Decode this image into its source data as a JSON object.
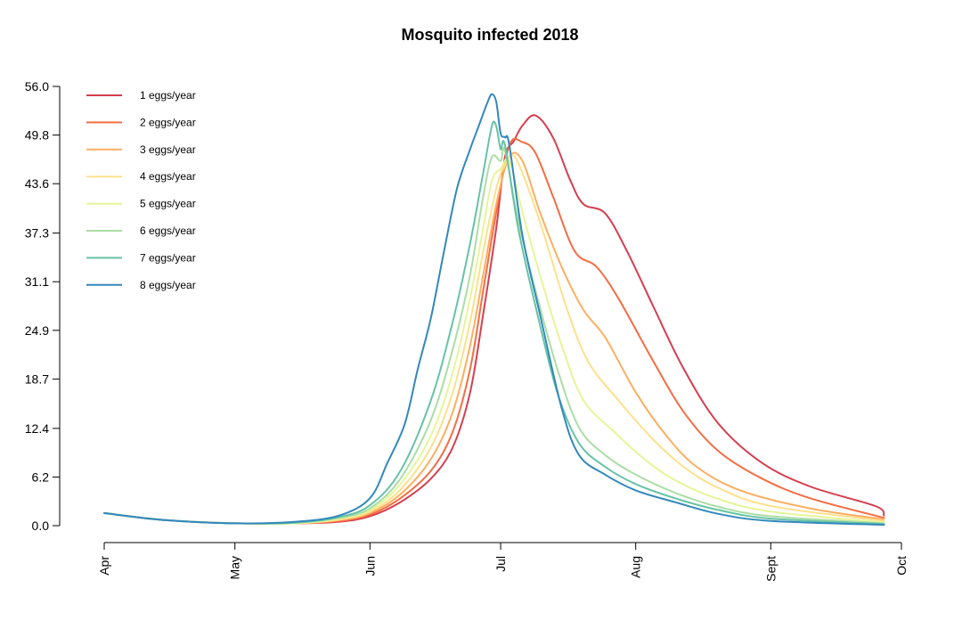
{
  "chart_data": {
    "type": "line",
    "title": "Mosquito infected 2018",
    "xlabel": "",
    "ylabel": "",
    "x_ticks": [
      "Apr",
      "May",
      "Jun",
      "Jul",
      "Aug",
      "Sept",
      "Oct"
    ],
    "x_tick_dates": [
      "2018-04-01",
      "2018-05-01",
      "2018-06-01",
      "2018-07-01",
      "2018-08-01",
      "2018-09-01",
      "2018-10-01"
    ],
    "xlim": [
      "2018-04-01",
      "2018-10-01"
    ],
    "y_ticks": [
      "0.0",
      "6.2",
      "12.4",
      "18.7",
      "24.9",
      "31.1",
      "37.3",
      "43.6",
      "49.8",
      "56.0"
    ],
    "ylim": [
      0,
      56
    ],
    "grid": false,
    "legend_position": "top-left",
    "series": [
      {
        "name": "1 eggs/year",
        "color": "#d53e4f",
        "points": [
          [
            "2018-04-01",
            1.6
          ],
          [
            "2018-04-15",
            0.7
          ],
          [
            "2018-05-01",
            0.3
          ],
          [
            "2018-05-15",
            0.3
          ],
          [
            "2018-05-25",
            0.5
          ],
          [
            "2018-06-01",
            1.2
          ],
          [
            "2018-06-08",
            3.0
          ],
          [
            "2018-06-15",
            6.0
          ],
          [
            "2018-06-20",
            10.0
          ],
          [
            "2018-06-24",
            17.0
          ],
          [
            "2018-06-27",
            27.0
          ],
          [
            "2018-06-30",
            38.0
          ],
          [
            "2018-07-02",
            47.0
          ],
          [
            "2018-07-04",
            49.0
          ],
          [
            "2018-07-06",
            51.0
          ],
          [
            "2018-07-09",
            52.3
          ],
          [
            "2018-07-13",
            49.5
          ],
          [
            "2018-07-17",
            44.0
          ],
          [
            "2018-07-20",
            41.0
          ],
          [
            "2018-07-25",
            39.8
          ],
          [
            "2018-07-30",
            35.0
          ],
          [
            "2018-08-05",
            28.0
          ],
          [
            "2018-08-12",
            20.0
          ],
          [
            "2018-08-20",
            13.0
          ],
          [
            "2018-08-30",
            8.0
          ],
          [
            "2018-09-10",
            5.0
          ],
          [
            "2018-09-25",
            2.5
          ],
          [
            "2018-09-27",
            1.3
          ]
        ]
      },
      {
        "name": "2 eggs/year",
        "color": "#f46d43",
        "points": [
          [
            "2018-04-01",
            1.6
          ],
          [
            "2018-04-15",
            0.7
          ],
          [
            "2018-05-01",
            0.3
          ],
          [
            "2018-05-15",
            0.3
          ],
          [
            "2018-05-25",
            0.6
          ],
          [
            "2018-06-01",
            1.4
          ],
          [
            "2018-06-08",
            3.5
          ],
          [
            "2018-06-15",
            7.0
          ],
          [
            "2018-06-20",
            12.0
          ],
          [
            "2018-06-24",
            20.0
          ],
          [
            "2018-06-27",
            30.0
          ],
          [
            "2018-06-30",
            40.0
          ],
          [
            "2018-07-03",
            48.5
          ],
          [
            "2018-07-06",
            48.9
          ],
          [
            "2018-07-09",
            47.5
          ],
          [
            "2018-07-13",
            42.0
          ],
          [
            "2018-07-18",
            35.0
          ],
          [
            "2018-07-23",
            33.0
          ],
          [
            "2018-07-28",
            29.0
          ],
          [
            "2018-08-05",
            21.0
          ],
          [
            "2018-08-12",
            14.5
          ],
          [
            "2018-08-20",
            9.5
          ],
          [
            "2018-08-30",
            6.0
          ],
          [
            "2018-09-10",
            3.5
          ],
          [
            "2018-09-27",
            1.0
          ]
        ]
      },
      {
        "name": "3 eggs/year",
        "color": "#fdae61",
        "points": [
          [
            "2018-04-01",
            1.6
          ],
          [
            "2018-04-15",
            0.7
          ],
          [
            "2018-05-01",
            0.3
          ],
          [
            "2018-05-15",
            0.3
          ],
          [
            "2018-05-25",
            0.7
          ],
          [
            "2018-06-01",
            1.6
          ],
          [
            "2018-06-08",
            4.0
          ],
          [
            "2018-06-15",
            8.5
          ],
          [
            "2018-06-20",
            14.5
          ],
          [
            "2018-06-24",
            23.0
          ],
          [
            "2018-06-27",
            32.0
          ],
          [
            "2018-06-30",
            41.0
          ],
          [
            "2018-07-03",
            47.0
          ],
          [
            "2018-07-06",
            46.5
          ],
          [
            "2018-07-10",
            40.0
          ],
          [
            "2018-07-15",
            33.0
          ],
          [
            "2018-07-20",
            27.5
          ],
          [
            "2018-07-25",
            24.0
          ],
          [
            "2018-08-01",
            17.0
          ],
          [
            "2018-08-08",
            11.5
          ],
          [
            "2018-08-15",
            7.5
          ],
          [
            "2018-08-25",
            4.5
          ],
          [
            "2018-09-10",
            2.2
          ],
          [
            "2018-09-27",
            0.8
          ]
        ]
      },
      {
        "name": "4 eggs/year",
        "color": "#fee08b",
        "points": [
          [
            "2018-04-01",
            1.6
          ],
          [
            "2018-04-15",
            0.7
          ],
          [
            "2018-05-01",
            0.3
          ],
          [
            "2018-05-15",
            0.3
          ],
          [
            "2018-05-25",
            0.8
          ],
          [
            "2018-06-01",
            1.8
          ],
          [
            "2018-06-08",
            4.6
          ],
          [
            "2018-06-15",
            10.0
          ],
          [
            "2018-06-20",
            17.0
          ],
          [
            "2018-06-24",
            26.0
          ],
          [
            "2018-06-27",
            35.0
          ],
          [
            "2018-06-30",
            43.0
          ],
          [
            "2018-07-02",
            46.0
          ],
          [
            "2018-07-04",
            47.2
          ],
          [
            "2018-07-07",
            43.5
          ],
          [
            "2018-07-11",
            37.0
          ],
          [
            "2018-07-16",
            28.0
          ],
          [
            "2018-07-21",
            21.0
          ],
          [
            "2018-07-28",
            16.0
          ],
          [
            "2018-08-05",
            11.0
          ],
          [
            "2018-08-12",
            7.5
          ],
          [
            "2018-08-20",
            4.8
          ],
          [
            "2018-09-01",
            2.5
          ],
          [
            "2018-09-27",
            0.6
          ]
        ]
      },
      {
        "name": "5 eggs/year",
        "color": "#e6f598",
        "points": [
          [
            "2018-04-01",
            1.6
          ],
          [
            "2018-04-15",
            0.7
          ],
          [
            "2018-05-01",
            0.3
          ],
          [
            "2018-05-15",
            0.3
          ],
          [
            "2018-05-25",
            0.9
          ],
          [
            "2018-06-01",
            2.0
          ],
          [
            "2018-06-08",
            5.3
          ],
          [
            "2018-06-15",
            11.5
          ],
          [
            "2018-06-20",
            19.5
          ],
          [
            "2018-06-24",
            29.0
          ],
          [
            "2018-06-27",
            38.0
          ],
          [
            "2018-06-29",
            44.0
          ],
          [
            "2018-07-01",
            45.5
          ],
          [
            "2018-07-03",
            46.5
          ],
          [
            "2018-07-06",
            40.0
          ],
          [
            "2018-07-10",
            32.0
          ],
          [
            "2018-07-15",
            23.0
          ],
          [
            "2018-07-20",
            16.0
          ],
          [
            "2018-07-27",
            12.0
          ],
          [
            "2018-08-03",
            8.5
          ],
          [
            "2018-08-10",
            5.8
          ],
          [
            "2018-08-20",
            3.4
          ],
          [
            "2018-09-01",
            1.8
          ],
          [
            "2018-09-27",
            0.4
          ]
        ]
      },
      {
        "name": "6 eggs/year",
        "color": "#abdda4",
        "points": [
          [
            "2018-04-01",
            1.6
          ],
          [
            "2018-04-15",
            0.7
          ],
          [
            "2018-05-01",
            0.3
          ],
          [
            "2018-05-15",
            0.35
          ],
          [
            "2018-05-25",
            1.0
          ],
          [
            "2018-06-01",
            2.2
          ],
          [
            "2018-06-08",
            6.0
          ],
          [
            "2018-06-15",
            13.5
          ],
          [
            "2018-06-20",
            22.5
          ],
          [
            "2018-06-24",
            32.0
          ],
          [
            "2018-06-27",
            42.0
          ],
          [
            "2018-06-29",
            47.0
          ],
          [
            "2018-07-01",
            46.5
          ],
          [
            "2018-07-02",
            47.8
          ],
          [
            "2018-07-05",
            39.0
          ],
          [
            "2018-07-09",
            30.0
          ],
          [
            "2018-07-14",
            20.0
          ],
          [
            "2018-07-19",
            12.5
          ],
          [
            "2018-07-25",
            9.0
          ],
          [
            "2018-08-01",
            6.5
          ],
          [
            "2018-08-10",
            4.2
          ],
          [
            "2018-08-20",
            2.4
          ],
          [
            "2018-09-01",
            1.2
          ],
          [
            "2018-09-27",
            0.3
          ]
        ]
      },
      {
        "name": "7 eggs/year",
        "color": "#66c2a5",
        "points": [
          [
            "2018-04-01",
            1.6
          ],
          [
            "2018-04-15",
            0.7
          ],
          [
            "2018-05-01",
            0.3
          ],
          [
            "2018-05-15",
            0.4
          ],
          [
            "2018-05-25",
            1.1
          ],
          [
            "2018-06-01",
            2.6
          ],
          [
            "2018-06-08",
            7.0
          ],
          [
            "2018-06-15",
            16.0
          ],
          [
            "2018-06-20",
            26.0
          ],
          [
            "2018-06-24",
            36.0
          ],
          [
            "2018-06-27",
            45.0
          ],
          [
            "2018-06-29",
            51.0
          ],
          [
            "2018-06-30",
            50.9
          ],
          [
            "2018-07-01",
            48.0
          ],
          [
            "2018-07-02",
            48.5
          ],
          [
            "2018-07-05",
            38.0
          ],
          [
            "2018-07-09",
            28.0
          ],
          [
            "2018-07-14",
            17.0
          ],
          [
            "2018-07-19",
            10.5
          ],
          [
            "2018-07-25",
            7.5
          ],
          [
            "2018-08-01",
            5.3
          ],
          [
            "2018-08-10",
            3.5
          ],
          [
            "2018-08-20",
            2.0
          ],
          [
            "2018-09-01",
            0.9
          ],
          [
            "2018-09-27",
            0.2
          ]
        ]
      },
      {
        "name": "8 eggs/year",
        "color": "#3288bd",
        "points": [
          [
            "2018-04-01",
            1.6
          ],
          [
            "2018-04-15",
            0.7
          ],
          [
            "2018-05-01",
            0.3
          ],
          [
            "2018-05-15",
            0.5
          ],
          [
            "2018-05-25",
            1.3
          ],
          [
            "2018-06-01",
            3.5
          ],
          [
            "2018-06-05",
            8.0
          ],
          [
            "2018-06-09",
            13.0
          ],
          [
            "2018-06-12",
            20.0
          ],
          [
            "2018-06-15",
            26.5
          ],
          [
            "2018-06-18",
            35.0
          ],
          [
            "2018-06-21",
            43.0
          ],
          [
            "2018-06-24",
            48.0
          ],
          [
            "2018-06-26",
            51.0
          ],
          [
            "2018-06-28",
            54.0
          ],
          [
            "2018-06-29",
            55.0
          ],
          [
            "2018-06-30",
            54.0
          ],
          [
            "2018-07-01",
            50.0
          ],
          [
            "2018-07-02",
            49.5
          ],
          [
            "2018-07-03",
            48.5
          ],
          [
            "2018-07-06",
            37.0
          ],
          [
            "2018-07-10",
            27.0
          ],
          [
            "2018-07-15",
            15.0
          ],
          [
            "2018-07-19",
            9.0
          ],
          [
            "2018-07-25",
            6.5
          ],
          [
            "2018-08-01",
            4.5
          ],
          [
            "2018-08-10",
            3.0
          ],
          [
            "2018-08-20",
            1.5
          ],
          [
            "2018-09-01",
            0.6
          ],
          [
            "2018-09-27",
            0.1
          ]
        ]
      }
    ]
  }
}
